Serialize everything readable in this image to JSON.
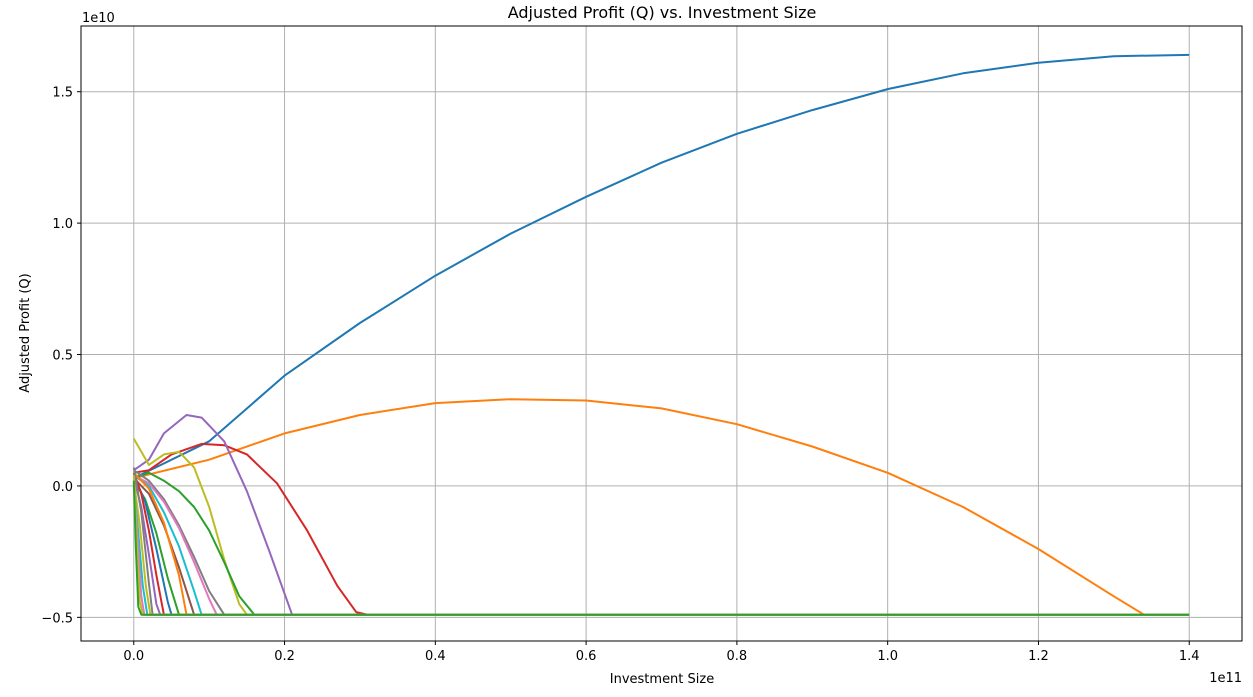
{
  "chart_data": {
    "type": "line",
    "title": "Adjusted Profit (Q) vs. Investment Size",
    "xlabel": "Investment Size",
    "ylabel": "Adjusted Profit (Q)",
    "x_offset_text": "1e11",
    "y_offset_text": "1e10",
    "xlim": [
      -0.07,
      1.47
    ],
    "ylim": [
      -0.59,
      1.75
    ],
    "xticks": [
      0.0,
      0.2,
      0.4,
      0.6,
      0.8,
      1.0,
      1.2,
      1.4
    ],
    "xtick_labels": [
      "0.0",
      "0.2",
      "0.4",
      "0.6",
      "0.8",
      "1.0",
      "1.2",
      "1.4"
    ],
    "yticks": [
      -0.5,
      0.0,
      0.5,
      1.0,
      1.5
    ],
    "ytick_labels": [
      "−0.5",
      "0.0",
      "0.5",
      "1.0",
      "1.5"
    ],
    "grid": true,
    "legend": "none",
    "series": [
      {
        "color": "#1f77b4",
        "x": [
          0.0,
          0.1,
          0.2,
          0.3,
          0.4,
          0.5,
          0.6,
          0.7,
          0.8,
          0.9,
          1.0,
          1.1,
          1.2,
          1.3,
          1.4
        ],
        "y": [
          0.03,
          0.17,
          0.42,
          0.62,
          0.8,
          0.96,
          1.1,
          1.23,
          1.34,
          1.43,
          1.51,
          1.57,
          1.61,
          1.635,
          1.64
        ]
      },
      {
        "color": "#ff7f0e",
        "x": [
          0.0,
          0.1,
          0.2,
          0.3,
          0.4,
          0.5,
          0.6,
          0.7,
          0.8,
          0.9,
          1.0,
          1.1,
          1.2,
          1.3,
          1.34,
          1.4
        ],
        "y": [
          0.03,
          0.1,
          0.2,
          0.27,
          0.315,
          0.33,
          0.325,
          0.295,
          0.235,
          0.15,
          0.05,
          -0.08,
          -0.24,
          -0.42,
          -0.49,
          -0.49
        ]
      },
      {
        "color": "#d62728",
        "x": [
          0.0,
          0.02,
          0.05,
          0.09,
          0.12,
          0.15,
          0.19,
          0.23,
          0.27,
          0.295,
          0.31,
          1.4
        ],
        "y": [
          0.05,
          0.06,
          0.12,
          0.16,
          0.155,
          0.12,
          0.01,
          -0.17,
          -0.38,
          -0.48,
          -0.49,
          -0.49
        ]
      },
      {
        "color": "#9467bd",
        "x": [
          0.0,
          0.02,
          0.04,
          0.07,
          0.09,
          0.12,
          0.15,
          0.18,
          0.21,
          1.4
        ],
        "y": [
          0.06,
          0.1,
          0.2,
          0.27,
          0.26,
          0.17,
          -0.02,
          -0.25,
          -0.49,
          -0.49
        ]
      },
      {
        "color": "#bcbd22",
        "x": [
          0.0,
          0.02,
          0.04,
          0.06,
          0.08,
          0.1,
          0.12,
          0.14,
          0.15,
          1.4
        ],
        "y": [
          0.18,
          0.08,
          0.12,
          0.13,
          0.07,
          -0.08,
          -0.28,
          -0.45,
          -0.49,
          -0.49
        ]
      },
      {
        "color": "#2ca02c",
        "x": [
          0.0,
          0.02,
          0.04,
          0.06,
          0.08,
          0.1,
          0.12,
          0.14,
          0.16,
          1.4
        ],
        "y": [
          0.03,
          0.05,
          0.02,
          -0.02,
          -0.08,
          -0.17,
          -0.29,
          -0.42,
          -0.49,
          -0.49
        ]
      },
      {
        "color": "#7f7f7f",
        "x": [
          0.0,
          0.02,
          0.04,
          0.06,
          0.08,
          0.1,
          0.12,
          1.4
        ],
        "y": [
          0.06,
          0.02,
          -0.05,
          -0.15,
          -0.27,
          -0.4,
          -0.49,
          -0.49
        ]
      },
      {
        "color": "#e377c2",
        "x": [
          0.0,
          0.02,
          0.04,
          0.06,
          0.08,
          0.1,
          0.11,
          1.4
        ],
        "y": [
          0.04,
          0.01,
          -0.06,
          -0.16,
          -0.29,
          -0.43,
          -0.49,
          -0.49
        ]
      },
      {
        "color": "#17becf",
        "x": [
          0.0,
          0.02,
          0.04,
          0.06,
          0.08,
          0.09,
          1.4
        ],
        "y": [
          0.04,
          0.0,
          -0.1,
          -0.23,
          -0.4,
          -0.49,
          -0.49
        ]
      },
      {
        "color": "#8c564b",
        "x": [
          0.0,
          0.02,
          0.04,
          0.06,
          0.08,
          1.4
        ],
        "y": [
          0.03,
          -0.03,
          -0.15,
          -0.31,
          -0.49,
          -0.49
        ]
      },
      {
        "color": "#ff7f0e",
        "x": [
          0.0,
          0.02,
          0.04,
          0.06,
          0.07,
          1.4
        ],
        "y": [
          0.05,
          -0.01,
          -0.14,
          -0.34,
          -0.49,
          -0.49
        ]
      },
      {
        "color": "#2ca02c",
        "x": [
          0.0,
          0.015,
          0.03,
          0.045,
          0.06,
          1.4
        ],
        "y": [
          0.02,
          -0.05,
          -0.18,
          -0.35,
          -0.49,
          -0.49
        ]
      },
      {
        "color": "#1f77b4",
        "x": [
          0.0,
          0.015,
          0.03,
          0.045,
          0.05,
          1.4
        ],
        "y": [
          0.04,
          -0.06,
          -0.24,
          -0.44,
          -0.49,
          -0.49
        ]
      },
      {
        "color": "#d62728",
        "x": [
          0.0,
          0.01,
          0.02,
          0.03,
          0.04,
          1.4
        ],
        "y": [
          0.05,
          -0.03,
          -0.17,
          -0.34,
          -0.49,
          -0.49
        ]
      },
      {
        "color": "#9467bd",
        "x": [
          0.0,
          0.01,
          0.02,
          0.03,
          0.035,
          1.4
        ],
        "y": [
          0.03,
          -0.08,
          -0.26,
          -0.45,
          -0.49,
          -0.49
        ]
      },
      {
        "color": "#7f7f7f",
        "x": [
          0.0,
          0.01,
          0.02,
          0.025,
          1.4
        ],
        "y": [
          0.07,
          -0.1,
          -0.37,
          -0.49,
          -0.49
        ]
      },
      {
        "color": "#bcbd22",
        "x": [
          0.0,
          0.008,
          0.016,
          0.022,
          1.4
        ],
        "y": [
          0.02,
          -0.15,
          -0.38,
          -0.49,
          -0.49
        ]
      },
      {
        "color": "#17becf",
        "x": [
          0.0,
          0.006,
          0.012,
          0.018,
          1.4
        ],
        "y": [
          0.0,
          -0.18,
          -0.38,
          -0.49,
          -0.49
        ]
      },
      {
        "color": "#e377c2",
        "x": [
          0.0,
          0.005,
          0.01,
          0.014,
          1.4
        ],
        "y": [
          0.01,
          -0.2,
          -0.42,
          -0.49,
          -0.49
        ]
      },
      {
        "color": "#bcbd22",
        "x": [
          0.0,
          0.004,
          0.008,
          0.012,
          1.4
        ],
        "y": [
          0.04,
          -0.22,
          -0.44,
          -0.49,
          -0.49
        ]
      },
      {
        "color": "#2ca02c",
        "x": [
          0.0,
          0.003,
          0.006,
          0.01,
          1.4
        ],
        "y": [
          0.02,
          -0.25,
          -0.46,
          -0.49,
          -0.49
        ]
      }
    ]
  }
}
